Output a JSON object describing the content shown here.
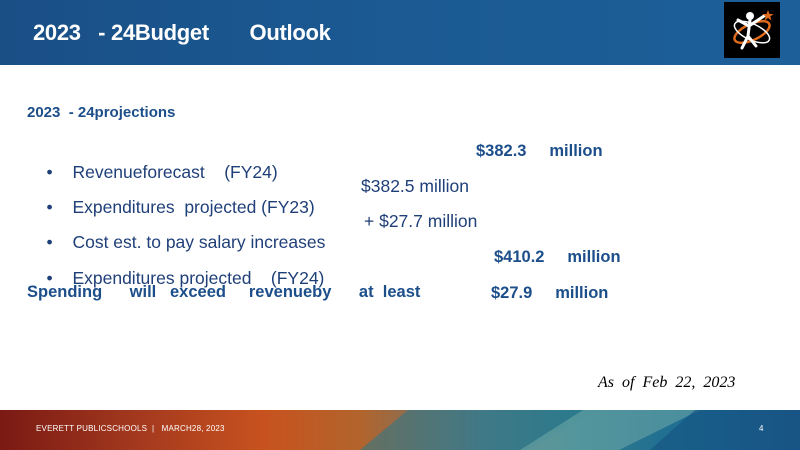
{
  "slide": {
    "title": "2023   - 24Budget       Outlook",
    "subhead": "2023  - 24projections",
    "bullets": [
      {
        "text": "Revenueforecast    (FY24)",
        "amount": "$382.3     million",
        "amount_bold": true
      },
      {
        "text": "Expenditures  projected (FY23)",
        "amount": "$382.5 million",
        "amount_bold": false
      },
      {
        "text": "Cost est. to pay salary increases",
        "amount": "+ $27.7 million",
        "amount_bold": false
      },
      {
        "text": "Expenditures projected    (FY24)",
        "amount": "$410.2     million",
        "amount_bold": true
      }
    ],
    "spending_text": "Spending      will   exceed     revenueby      at  least",
    "spending_amount": "$27.9     million",
    "as_of": "As  of  Feb  22,  2023"
  },
  "footer": {
    "text": "EVERETT PUBLICSCHOOLS  |   MARCH28, 2023",
    "page_number": "4"
  },
  "colors": {
    "header": "#1b5a93",
    "text": "#1f3f78",
    "accent": "#1c4e8a"
  }
}
